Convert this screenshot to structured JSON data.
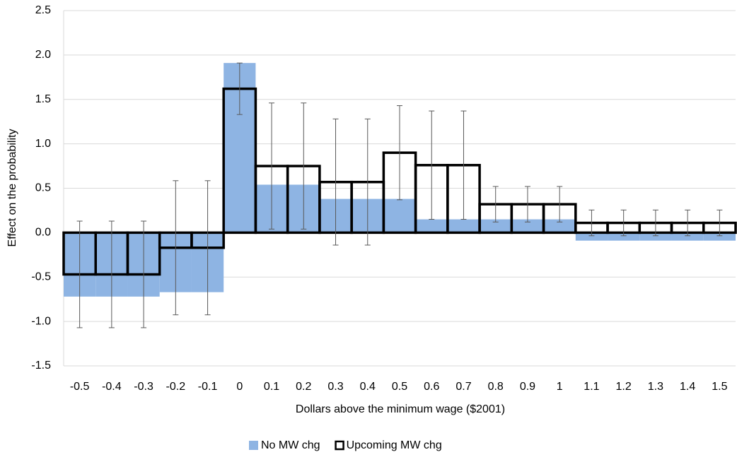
{
  "chart_data": {
    "type": "bar",
    "y_label": "Effect on the probability",
    "x_label": "Dollars above the minimum wage ($2001)",
    "categories": [
      "-0.5",
      "-0.4",
      "-0.3",
      "-0.2",
      "-0.1",
      "0",
      "0.1",
      "0.2",
      "0.3",
      "0.4",
      "0.5",
      "0.6",
      "0.7",
      "0.8",
      "0.9",
      "1",
      "1.1",
      "1.2",
      "1.3",
      "1.4",
      "1.5"
    ],
    "series": [
      {
        "name": "No MW chg",
        "color": "#8eb4e3",
        "style": "filled",
        "values": [
          -0.72,
          -0.72,
          -0.72,
          -0.67,
          -0.67,
          1.91,
          0.54,
          0.54,
          0.38,
          0.38,
          0.38,
          0.15,
          0.15,
          0.15,
          0.15,
          0.15,
          -0.09,
          -0.09,
          -0.09,
          -0.09,
          -0.09
        ]
      },
      {
        "name": "Upcoming MW chg",
        "color": "#000000",
        "style": "outline",
        "values": [
          -0.47,
          -0.47,
          -0.47,
          -0.17,
          -0.17,
          1.62,
          0.75,
          0.75,
          0.57,
          0.57,
          0.9,
          0.76,
          0.76,
          0.32,
          0.32,
          0.32,
          0.11,
          0.11,
          0.11,
          0.11,
          0.11
        ],
        "errors": [
          0.6,
          0.6,
          0.6,
          0.755,
          0.755,
          0.29,
          0.71,
          0.71,
          0.71,
          0.71,
          0.53,
          0.61,
          0.61,
          0.2,
          0.2,
          0.2,
          0.145,
          0.145,
          0.145,
          0.145,
          0.145
        ]
      }
    ],
    "ylim": [
      -1.5,
      2.5
    ],
    "yticks": [
      -1.5,
      {
        "value": -1,
        "label": "-1.0"
      },
      -0.5,
      {
        "value": 0,
        "label": "0.0"
      },
      0.5,
      {
        "value": 1,
        "label": "1.0"
      },
      1.5,
      {
        "value": 2,
        "label": "2.0"
      },
      2.5
    ],
    "grid": true,
    "legend": "bottom"
  }
}
